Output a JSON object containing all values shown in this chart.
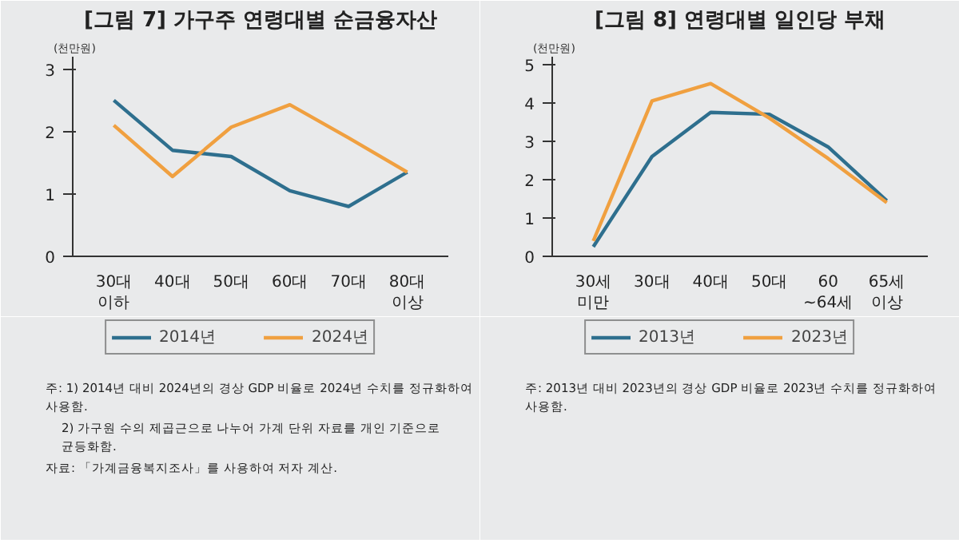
{
  "chart_data": [
    {
      "type": "line",
      "title": "[그림 7] 가구주 연령대별 순금융자산",
      "ylabel": "(천만원)",
      "categories": [
        "30대\n이하",
        "40대",
        "50대",
        "60대",
        "70대",
        "80대\n이상"
      ],
      "series": [
        {
          "name": "2014년",
          "color": "#2e6f8e",
          "values": [
            2.5,
            1.7,
            1.6,
            1.05,
            0.8,
            1.35
          ]
        },
        {
          "name": "2024년",
          "color": "#f0a040",
          "values": [
            2.1,
            1.28,
            2.07,
            2.43,
            1.9,
            1.35
          ]
        }
      ],
      "ylim": [
        0,
        3.2
      ],
      "yticks": [
        0,
        1,
        2,
        3
      ],
      "grid": false,
      "legend": "bottom",
      "annotations": [
        "주: 1) 2014년 대비 2024년의 경상 GDP 비율로 2024년 수치를 정규화하여 사용함.",
        "2) 가구원 수의 제곱근으로 나누어 가계 단위 자료를 개인 기준으로 균등화함.",
        "자료: 「가계금융복지조사」를 사용하여 저자 계산."
      ]
    },
    {
      "type": "line",
      "title": "[그림 8] 연령대별 일인당 부채",
      "ylabel": "(천만원)",
      "categories": [
        "30세\n미만",
        "30대",
        "40대",
        "50대",
        "60\n~64세",
        "65세\n이상"
      ],
      "series": [
        {
          "name": "2013년",
          "color": "#2e6f8e",
          "values": [
            0.25,
            2.6,
            3.75,
            3.7,
            2.85,
            1.45
          ]
        },
        {
          "name": "2023년",
          "color": "#f0a040",
          "values": [
            0.4,
            4.05,
            4.5,
            3.6,
            2.55,
            1.4
          ]
        }
      ],
      "ylim": [
        0,
        5.2
      ],
      "yticks": [
        0,
        1,
        2,
        3,
        4,
        5
      ],
      "grid": false,
      "legend": "bottom",
      "annotations": [
        "주: 2013년 대비 2023년의 경상 GDP 비율로 2023년 수치를 정규화하여 사용함."
      ]
    }
  ]
}
